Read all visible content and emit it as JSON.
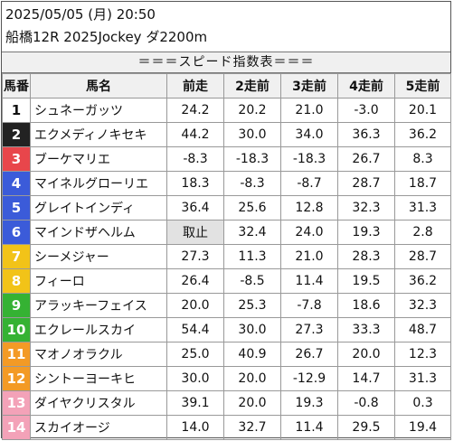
{
  "header": {
    "datetime": "2025/05/05 (月) 20:50",
    "race": "船橋12R 2025Jockey ダ2200m"
  },
  "title": "＝＝＝スピード指数表＝＝＝",
  "columns": [
    "馬番",
    "馬名",
    "前走",
    "2走前",
    "3走前",
    "4走前",
    "5走前"
  ],
  "rows": [
    {
      "num": "1",
      "name": "シュネーガッツ",
      "v": [
        "24.2",
        "20.2",
        "21.0",
        "-3.0",
        "20.1"
      ],
      "bg": "#ffffff",
      "fg": "#111111"
    },
    {
      "num": "2",
      "name": "エクメディノキセキ",
      "v": [
        "44.2",
        "30.0",
        "34.0",
        "36.3",
        "36.2"
      ],
      "bg": "#222222",
      "fg": "#ffffff"
    },
    {
      "num": "3",
      "name": "ブーケマリエ",
      "v": [
        "-8.3",
        "-18.3",
        "-18.3",
        "26.7",
        "8.3"
      ],
      "bg": "#e8464b",
      "fg": "#ffffff"
    },
    {
      "num": "4",
      "name": "マイネルグローリエ",
      "v": [
        "18.3",
        "-8.3",
        "-8.7",
        "28.7",
        "18.7"
      ],
      "bg": "#3b5bd9",
      "fg": "#ffffff"
    },
    {
      "num": "5",
      "name": "グレイトインディ",
      "v": [
        "36.4",
        "25.6",
        "12.8",
        "32.3",
        "31.3"
      ],
      "bg": "#3b5bd9",
      "fg": "#ffffff"
    },
    {
      "num": "6",
      "name": "マインドザヘルム",
      "v": [
        "取止",
        "32.4",
        "24.0",
        "19.3",
        "2.8"
      ],
      "bg": "#3b5bd9",
      "fg": "#ffffff"
    },
    {
      "num": "7",
      "name": "シーメジャー",
      "v": [
        "27.3",
        "11.3",
        "21.0",
        "28.3",
        "28.7"
      ],
      "bg": "#f2c318",
      "fg": "#ffffff"
    },
    {
      "num": "8",
      "name": "フィーロ",
      "v": [
        "26.4",
        "-8.5",
        "11.4",
        "19.5",
        "36.2"
      ],
      "bg": "#f2c318",
      "fg": "#ffffff"
    },
    {
      "num": "9",
      "name": "アラッキーフェイス",
      "v": [
        "20.0",
        "25.3",
        "-7.8",
        "18.6",
        "32.3"
      ],
      "bg": "#35b233",
      "fg": "#ffffff"
    },
    {
      "num": "10",
      "name": "エクレールスカイ",
      "v": [
        "54.4",
        "30.0",
        "27.3",
        "33.3",
        "48.7"
      ],
      "bg": "#35b233",
      "fg": "#ffffff"
    },
    {
      "num": "11",
      "name": "マオノオラクル",
      "v": [
        "25.0",
        "40.9",
        "26.7",
        "20.0",
        "12.3"
      ],
      "bg": "#f39a25",
      "fg": "#ffffff"
    },
    {
      "num": "12",
      "name": "シントーヨーキヒ",
      "v": [
        "30.0",
        "20.0",
        "-12.9",
        "14.7",
        "31.3"
      ],
      "bg": "#f39a25",
      "fg": "#ffffff"
    },
    {
      "num": "13",
      "name": "ダイヤクリスタル",
      "v": [
        "39.1",
        "20.0",
        "19.3",
        "-0.8",
        "0.3"
      ],
      "bg": "#f3a2b8",
      "fg": "#ffffff"
    },
    {
      "num": "14",
      "name": "スカイオージ",
      "v": [
        "14.0",
        "32.7",
        "11.4",
        "29.5",
        "19.4"
      ],
      "bg": "#f3a2b8",
      "fg": "#ffffff"
    }
  ],
  "stop_cell_color": "#e2e2e2"
}
